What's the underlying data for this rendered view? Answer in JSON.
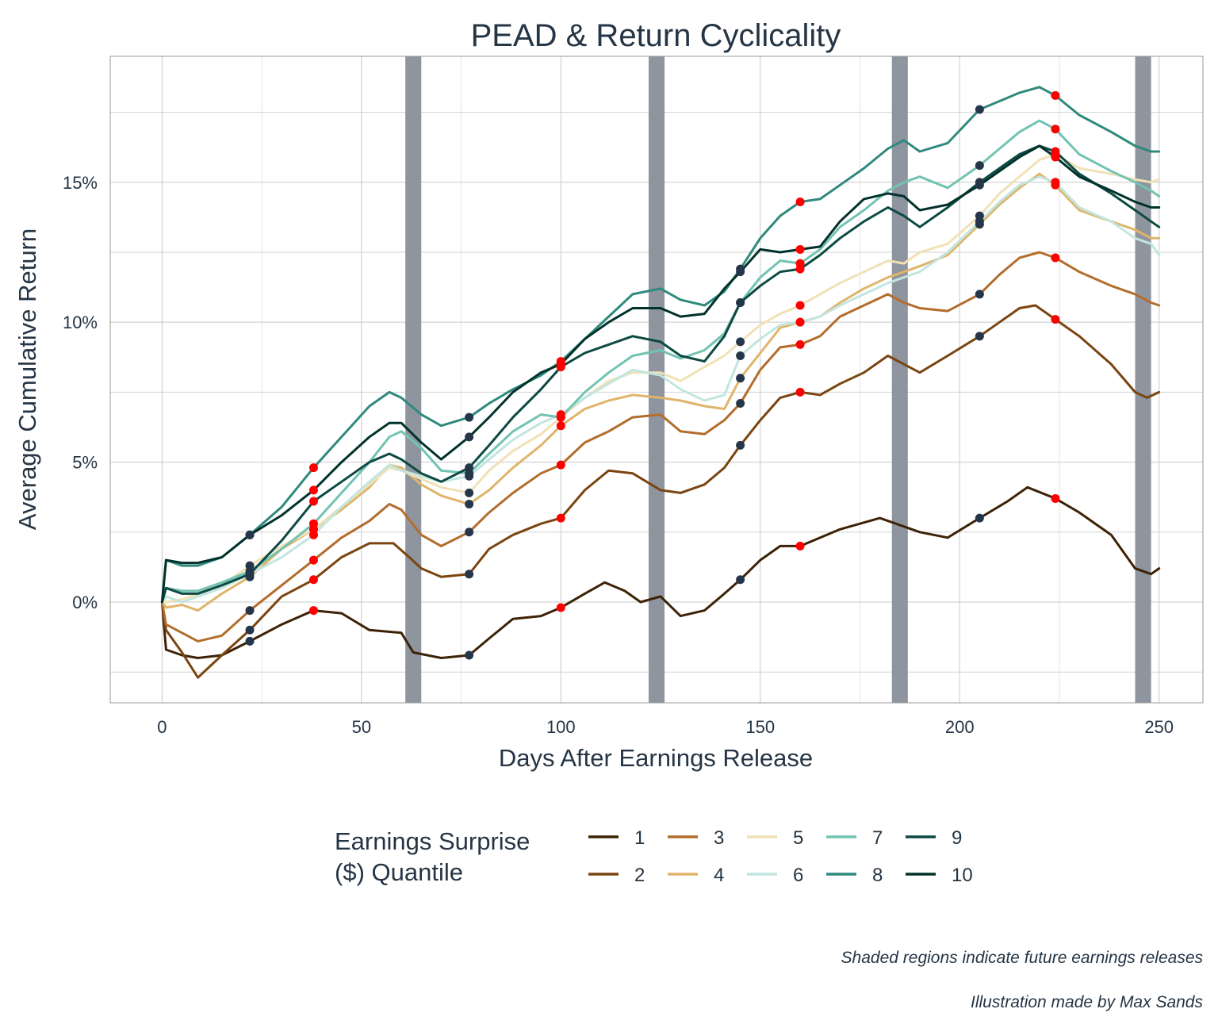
{
  "chart_data": {
    "type": "line",
    "title": "PEAD & Return Cyclicality",
    "xlabel": "Days After Earnings Release",
    "ylabel": "Average Cumulative Return",
    "xlim": [
      -13,
      261
    ],
    "ylim": [
      -3.6,
      19.5
    ],
    "x_ticks": [
      0,
      50,
      100,
      150,
      200,
      250
    ],
    "x_tick_labels": [
      "0",
      "50",
      "100",
      "150",
      "200",
      "250"
    ],
    "y_ticks": [
      0,
      5,
      10,
      15
    ],
    "y_tick_labels": [
      "0%",
      "5%",
      "10%",
      "15%"
    ],
    "y_minor_ticks": [
      -2.5,
      2.5,
      7.5,
      12.5,
      17.5
    ],
    "grid": true,
    "legend": {
      "title_line1": "Earnings Surprise",
      "title_line2": "($) Quantile",
      "position": "bottom"
    },
    "shaded_regions": [
      [
        61,
        65
      ],
      [
        122,
        126
      ],
      [
        183,
        187
      ],
      [
        244,
        248
      ]
    ],
    "dark_point_days": [
      22,
      77,
      145,
      205
    ],
    "red_point_days": [
      38,
      100,
      160,
      224
    ],
    "colors": {
      "dark_point": "#26364a",
      "red_point": "#ff0000",
      "shade": "#8e959f",
      "grid": "#c8c8c8",
      "frame": "#9a9a9a"
    },
    "series": [
      {
        "name": "1",
        "color": "#3d2206",
        "x": [
          0,
          1,
          5,
          9,
          15,
          22,
          30,
          38,
          45,
          52,
          60,
          63,
          70,
          77,
          82,
          88,
          95,
          100,
          106,
          111,
          116,
          120,
          125,
          130,
          136,
          141,
          145,
          150,
          155,
          160,
          170,
          180,
          190,
          197,
          205,
          212,
          217,
          224,
          230,
          238,
          244,
          248,
          250
        ],
        "y": [
          0,
          -1.7,
          -1.9,
          -2.0,
          -1.9,
          -1.4,
          -0.8,
          -0.3,
          -0.4,
          -1.0,
          -1.1,
          -1.8,
          -2.0,
          -1.9,
          -1.3,
          -0.6,
          -0.5,
          -0.2,
          0.3,
          0.7,
          0.4,
          0.0,
          0.2,
          -0.5,
          -0.3,
          0.3,
          0.8,
          1.5,
          2.0,
          2.0,
          2.6,
          3.0,
          2.5,
          2.3,
          3.0,
          3.6,
          4.1,
          3.7,
          3.2,
          2.4,
          1.2,
          1.0,
          1.2
        ]
      },
      {
        "name": "2",
        "color": "#7a4510",
        "x": [
          0,
          1,
          5,
          9,
          15,
          22,
          30,
          38,
          45,
          52,
          58,
          62,
          65,
          70,
          77,
          82,
          88,
          95,
          100,
          106,
          112,
          118,
          125,
          130,
          136,
          141,
          145,
          150,
          155,
          160,
          165,
          170,
          176,
          182,
          186,
          190,
          197,
          205,
          210,
          215,
          219,
          224,
          230,
          238,
          244,
          247,
          250
        ],
        "y": [
          0,
          -1.0,
          -1.8,
          -2.7,
          -1.9,
          -1.0,
          0.2,
          0.8,
          1.6,
          2.1,
          2.1,
          1.6,
          1.2,
          0.9,
          1.0,
          1.9,
          2.4,
          2.8,
          3.0,
          4.0,
          4.7,
          4.6,
          4.0,
          3.9,
          4.2,
          4.8,
          5.6,
          6.5,
          7.3,
          7.5,
          7.4,
          7.8,
          8.2,
          8.8,
          8.5,
          8.2,
          8.8,
          9.5,
          10.0,
          10.5,
          10.6,
          10.1,
          9.5,
          8.5,
          7.5,
          7.3,
          7.5
        ]
      },
      {
        "name": "3",
        "color": "#b36d2c",
        "x": [
          0,
          1,
          5,
          9,
          15,
          22,
          30,
          38,
          45,
          52,
          57,
          60,
          65,
          70,
          77,
          82,
          88,
          95,
          100,
          106,
          112,
          118,
          125,
          130,
          136,
          141,
          145,
          150,
          155,
          160,
          165,
          170,
          176,
          182,
          186,
          190,
          197,
          205,
          210,
          215,
          220,
          224,
          230,
          238,
          244,
          248,
          250
        ],
        "y": [
          0,
          -0.8,
          -1.1,
          -1.4,
          -1.2,
          -0.3,
          0.6,
          1.5,
          2.3,
          2.9,
          3.5,
          3.3,
          2.4,
          2.0,
          2.5,
          3.2,
          3.9,
          4.6,
          4.9,
          5.7,
          6.1,
          6.6,
          6.7,
          6.1,
          6.0,
          6.5,
          7.1,
          8.3,
          9.1,
          9.2,
          9.5,
          10.2,
          10.6,
          11.0,
          10.7,
          10.5,
          10.4,
          11.0,
          11.7,
          12.3,
          12.5,
          12.3,
          11.8,
          11.3,
          11.0,
          10.7,
          10.6
        ]
      },
      {
        "name": "4",
        "color": "#dfb46b",
        "x": [
          0,
          1,
          5,
          9,
          15,
          22,
          30,
          38,
          45,
          52,
          57,
          60,
          65,
          70,
          77,
          82,
          88,
          95,
          100,
          106,
          112,
          118,
          125,
          130,
          136,
          141,
          145,
          150,
          155,
          160,
          165,
          170,
          176,
          182,
          186,
          190,
          197,
          205,
          210,
          215,
          220,
          224,
          230,
          238,
          244,
          248,
          250
        ],
        "y": [
          0,
          -0.2,
          -0.1,
          -0.3,
          0.3,
          0.9,
          1.9,
          2.6,
          3.3,
          4.1,
          4.9,
          4.8,
          4.2,
          3.8,
          3.5,
          4.0,
          4.8,
          5.6,
          6.3,
          6.9,
          7.2,
          7.4,
          7.3,
          7.2,
          7.0,
          6.9,
          8.0,
          8.9,
          9.8,
          10.0,
          10.2,
          10.7,
          11.2,
          11.6,
          11.8,
          12.0,
          12.4,
          13.5,
          14.2,
          14.8,
          15.3,
          14.9,
          14.0,
          13.6,
          13.3,
          13.0,
          13.0
        ]
      },
      {
        "name": "5",
        "color": "#f1e1b6",
        "x": [
          0,
          1,
          5,
          9,
          15,
          22,
          30,
          38,
          45,
          52,
          57,
          60,
          65,
          70,
          77,
          82,
          88,
          95,
          100,
          106,
          112,
          118,
          125,
          130,
          136,
          141,
          145,
          150,
          155,
          160,
          165,
          170,
          176,
          182,
          186,
          190,
          197,
          205,
          210,
          215,
          220,
          224,
          230,
          238,
          244,
          248,
          250
        ],
        "y": [
          0,
          0.0,
          0.1,
          0.3,
          0.6,
          1.3,
          2.0,
          2.6,
          3.4,
          4.2,
          4.8,
          4.7,
          4.4,
          4.1,
          3.9,
          4.7,
          5.4,
          6.0,
          6.6,
          7.3,
          7.9,
          8.2,
          8.2,
          7.9,
          8.4,
          8.8,
          9.3,
          9.9,
          10.3,
          10.6,
          11.0,
          11.4,
          11.8,
          12.2,
          12.1,
          12.5,
          12.8,
          13.8,
          14.6,
          15.2,
          15.8,
          16.0,
          15.5,
          15.3,
          15.1,
          15.0,
          15.1
        ]
      },
      {
        "name": "6",
        "color": "#c2e6df",
        "x": [
          0,
          1,
          5,
          9,
          15,
          22,
          30,
          38,
          45,
          52,
          57,
          60,
          65,
          70,
          77,
          82,
          88,
          95,
          100,
          106,
          112,
          118,
          125,
          130,
          136,
          141,
          145,
          150,
          155,
          160,
          165,
          170,
          176,
          182,
          186,
          190,
          197,
          205,
          210,
          215,
          220,
          224,
          230,
          238,
          244,
          248,
          250
        ],
        "y": [
          0,
          0.2,
          0.0,
          0.2,
          0.5,
          1.0,
          1.6,
          2.4,
          3.4,
          4.3,
          4.9,
          4.7,
          4.5,
          4.3,
          4.5,
          5.1,
          5.8,
          6.4,
          6.7,
          7.3,
          7.8,
          8.3,
          8.1,
          7.6,
          7.2,
          7.4,
          8.8,
          9.4,
          9.9,
          10.0,
          10.2,
          10.6,
          11.0,
          11.4,
          11.6,
          11.8,
          12.5,
          13.6,
          14.3,
          14.9,
          15.2,
          15.0,
          14.1,
          13.6,
          13.0,
          12.8,
          12.4
        ]
      },
      {
        "name": "7",
        "color": "#72c3b2",
        "x": [
          0,
          1,
          5,
          9,
          15,
          22,
          30,
          38,
          45,
          52,
          57,
          60,
          65,
          70,
          77,
          82,
          88,
          95,
          100,
          106,
          112,
          118,
          125,
          130,
          136,
          141,
          145,
          150,
          155,
          160,
          165,
          170,
          176,
          182,
          186,
          190,
          197,
          205,
          210,
          215,
          220,
          224,
          230,
          238,
          244,
          248,
          250
        ],
        "y": [
          0,
          0.5,
          0.4,
          0.4,
          0.7,
          1.1,
          1.9,
          2.8,
          3.9,
          5.0,
          5.9,
          6.1,
          5.5,
          4.7,
          4.6,
          5.3,
          6.1,
          6.7,
          6.6,
          7.5,
          8.2,
          8.8,
          9.0,
          8.7,
          9.0,
          9.6,
          10.7,
          11.6,
          12.2,
          12.1,
          12.6,
          13.4,
          14.0,
          14.7,
          15.0,
          15.2,
          14.8,
          15.6,
          16.2,
          16.8,
          17.2,
          16.9,
          16.0,
          15.4,
          15.0,
          14.7,
          14.5
        ]
      },
      {
        "name": "8",
        "color": "#2f8a7d",
        "x": [
          0,
          1,
          5,
          9,
          15,
          22,
          30,
          38,
          45,
          52,
          57,
          60,
          65,
          70,
          77,
          82,
          88,
          95,
          100,
          106,
          112,
          118,
          125,
          130,
          136,
          141,
          145,
          150,
          155,
          160,
          165,
          170,
          176,
          182,
          186,
          190,
          197,
          205,
          210,
          215,
          220,
          224,
          230,
          238,
          244,
          248,
          250
        ],
        "y": [
          0,
          1.5,
          1.3,
          1.3,
          1.6,
          2.4,
          3.4,
          4.8,
          5.9,
          7.0,
          7.5,
          7.3,
          6.7,
          6.3,
          6.6,
          7.1,
          7.6,
          8.1,
          8.6,
          9.4,
          10.2,
          11.0,
          11.2,
          10.8,
          10.6,
          11.1,
          11.9,
          13.0,
          13.8,
          14.3,
          14.4,
          14.9,
          15.5,
          16.2,
          16.5,
          16.1,
          16.4,
          17.6,
          17.9,
          18.2,
          18.4,
          18.1,
          17.4,
          16.8,
          16.3,
          16.1,
          16.1
        ]
      },
      {
        "name": "9",
        "color": "#0d4a43",
        "x": [
          0,
          1,
          5,
          9,
          15,
          22,
          30,
          38,
          45,
          52,
          57,
          60,
          65,
          70,
          77,
          82,
          88,
          95,
          100,
          106,
          112,
          118,
          125,
          130,
          136,
          141,
          145,
          150,
          155,
          160,
          165,
          170,
          176,
          182,
          186,
          190,
          197,
          205,
          210,
          215,
          220,
          224,
          230,
          238,
          244,
          248,
          250
        ],
        "y": [
          0,
          0.5,
          0.3,
          0.3,
          0.6,
          1.0,
          2.2,
          3.6,
          4.3,
          5.0,
          5.3,
          5.1,
          4.6,
          4.3,
          4.8,
          5.6,
          6.6,
          7.6,
          8.4,
          8.9,
          9.2,
          9.5,
          9.3,
          8.8,
          8.6,
          9.5,
          10.7,
          11.3,
          11.8,
          11.9,
          12.4,
          13.0,
          13.6,
          14.1,
          13.8,
          13.4,
          14.1,
          15.0,
          15.5,
          16.0,
          16.3,
          16.1,
          15.3,
          14.6,
          14.0,
          13.6,
          13.4
        ]
      },
      {
        "name": "10",
        "color": "#02322c",
        "x": [
          0,
          1,
          5,
          9,
          15,
          22,
          30,
          38,
          45,
          52,
          57,
          60,
          65,
          70,
          77,
          82,
          88,
          95,
          100,
          106,
          112,
          118,
          125,
          130,
          136,
          141,
          145,
          150,
          155,
          160,
          165,
          170,
          176,
          182,
          186,
          190,
          197,
          205,
          210,
          215,
          220,
          224,
          230,
          238,
          244,
          248,
          250
        ],
        "y": [
          0,
          1.5,
          1.4,
          1.4,
          1.6,
          2.4,
          3.1,
          4.0,
          5.0,
          5.9,
          6.4,
          6.4,
          5.7,
          5.1,
          5.9,
          6.6,
          7.5,
          8.2,
          8.5,
          9.4,
          10.0,
          10.5,
          10.5,
          10.2,
          10.3,
          11.2,
          11.8,
          12.6,
          12.5,
          12.6,
          12.7,
          13.6,
          14.4,
          14.6,
          14.5,
          14.0,
          14.2,
          14.9,
          15.4,
          15.9,
          16.3,
          15.9,
          15.2,
          14.7,
          14.3,
          14.1,
          14.1
        ]
      }
    ]
  },
  "captions": {
    "line1": "Shaded regions indicate future earnings releases",
    "line2": "Illustration made by Max Sands"
  }
}
